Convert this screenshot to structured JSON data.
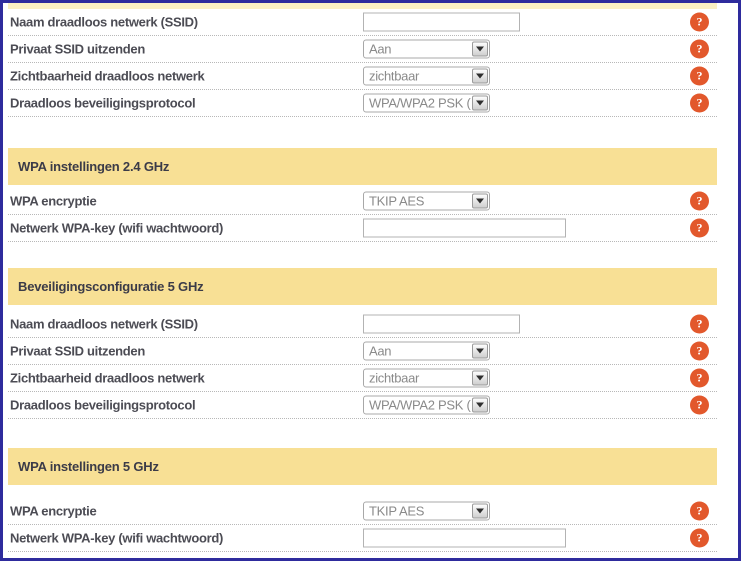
{
  "page": {
    "border_color": "#2e2b9d",
    "header_background": "#f8e095",
    "help_icon_color": "#e2582c",
    "help_glyph": "?"
  },
  "sections": [
    {
      "header": null,
      "rows": [
        {
          "label": "Naam draadloos netwerk (SSID)",
          "control": "text",
          "value": "",
          "wide": false
        },
        {
          "label": "Privaat SSID uitzenden",
          "control": "select",
          "value": "Aan"
        },
        {
          "label": "Zichtbaarheid draadloos netwerk",
          "control": "select",
          "value": "zichtbaar"
        },
        {
          "label": "Draadloos beveiligingsprotocol",
          "control": "select",
          "value": "WPA/WPA2 PSK ("
        }
      ]
    },
    {
      "header": "WPA instellingen 2.4 GHz",
      "rows": [
        {
          "label": "WPA encryptie",
          "control": "select",
          "value": "TKIP AES"
        },
        {
          "label": "Netwerk WPA-key (wifi wachtwoord)",
          "control": "text",
          "value": "",
          "wide": true
        }
      ]
    },
    {
      "header": "Beveiligingsconfiguratie 5 GHz",
      "rows": [
        {
          "label": "Naam draadloos netwerk (SSID)",
          "control": "text",
          "value": "",
          "wide": false
        },
        {
          "label": "Privaat SSID uitzenden",
          "control": "select",
          "value": "Aan"
        },
        {
          "label": "Zichtbaarheid draadloos netwerk",
          "control": "select",
          "value": "zichtbaar"
        },
        {
          "label": "Draadloos beveiligingsprotocol",
          "control": "select",
          "value": "WPA/WPA2 PSK ("
        }
      ]
    },
    {
      "header": "WPA instellingen 5 GHz",
      "rows": [
        {
          "label": "WPA encryptie",
          "control": "select",
          "value": "TKIP AES"
        },
        {
          "label": "Netwerk WPA-key (wifi wachtwoord)",
          "control": "text",
          "value": "",
          "wide": true
        }
      ]
    }
  ]
}
